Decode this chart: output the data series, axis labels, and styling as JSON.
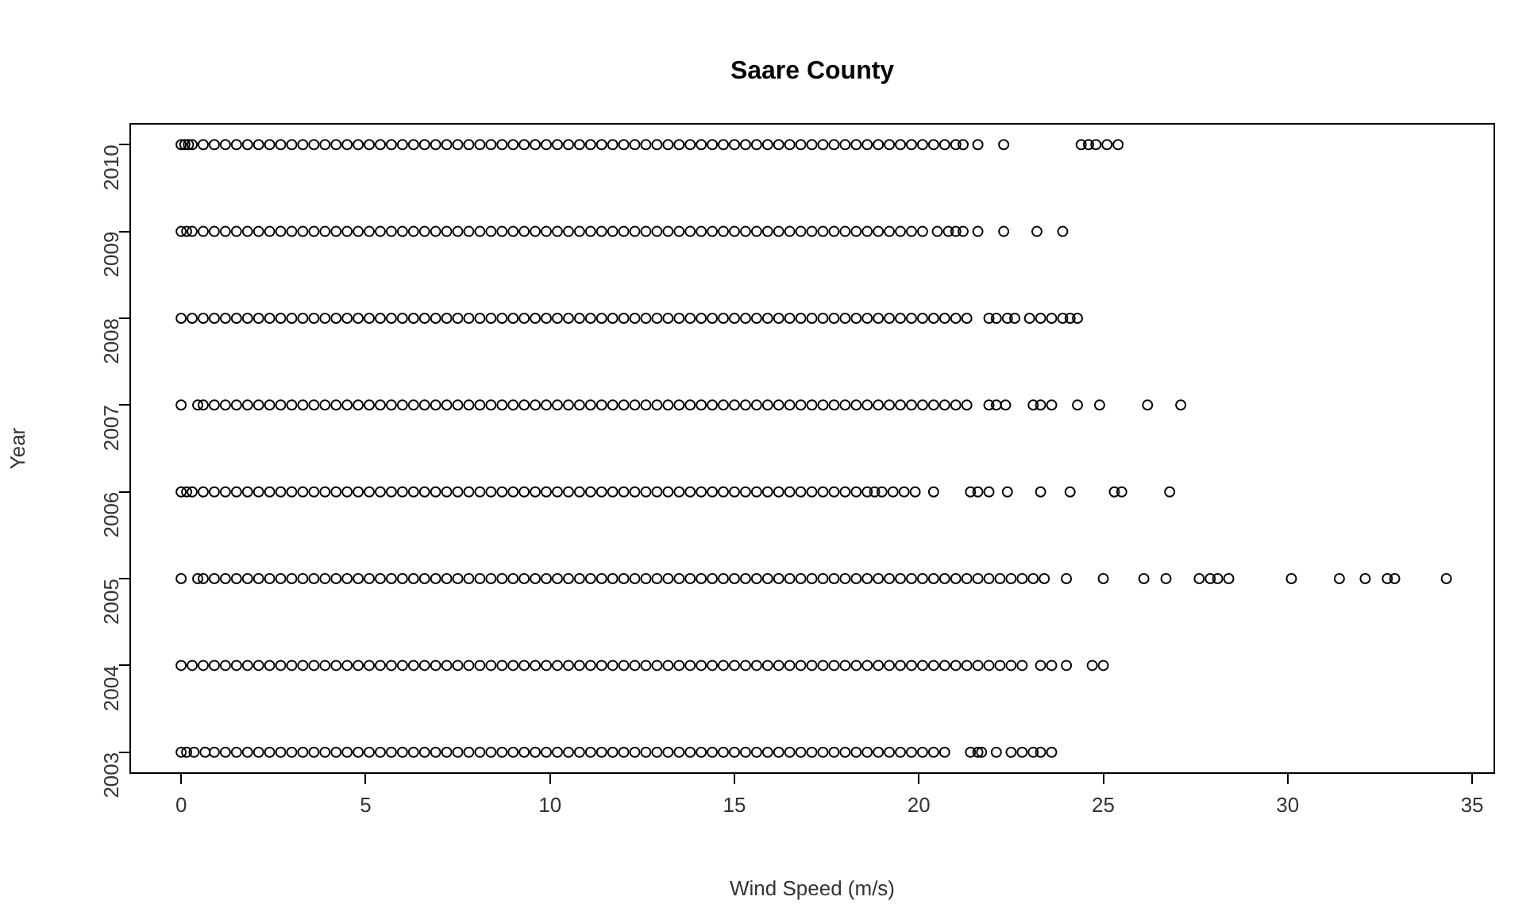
{
  "chart_data": {
    "type": "scatter",
    "title": "Saare County",
    "xlabel": "Wind Speed (m/s)",
    "ylabel": "Year",
    "xlim": [
      -1.38,
      35.6
    ],
    "xticks": [
      0,
      5,
      10,
      15,
      20,
      25,
      30,
      35
    ],
    "ylim": [
      2002.76,
      2010.24
    ],
    "yticks": [
      2003,
      2004,
      2005,
      2006,
      2007,
      2008,
      2009,
      2010
    ],
    "grid": false,
    "legend": false,
    "marker": "circle",
    "series": [
      {
        "color": "#000000",
        "x": [
          0,
          0.1,
          0.2,
          0.3,
          0.6,
          0.9,
          1.2,
          1.5,
          1.8,
          2.1,
          2.4,
          2.7,
          3,
          3.3,
          3.6,
          3.9,
          4.2,
          4.5,
          4.8,
          5.1,
          5.4,
          5.7,
          6,
          6.3,
          6.6,
          6.9,
          7.2,
          7.5,
          7.8,
          8.1,
          8.4,
          8.7,
          9,
          9.3,
          9.6,
          9.9,
          10.2,
          10.5,
          10.8,
          11.1,
          11.4,
          11.7,
          12,
          12.3,
          12.6,
          12.9,
          13.2,
          13.5,
          13.8,
          14.1,
          14.4,
          14.7,
          15,
          15.3,
          15.6,
          15.9,
          16.2,
          16.5,
          16.8,
          17.1,
          17.4,
          17.7,
          18,
          18.3,
          18.6,
          18.9,
          19.2,
          19.5,
          19.8,
          20.1,
          20.4,
          20.7,
          21,
          21.2,
          21.6,
          22.3,
          24.4,
          24.6,
          24.8,
          25.1,
          25.4
        ],
        "values": [
          2010,
          2010,
          2010,
          2010,
          2010,
          2010,
          2010,
          2010,
          2010,
          2010,
          2010,
          2010,
          2010,
          2010,
          2010,
          2010,
          2010,
          2010,
          2010,
          2010,
          2010,
          2010,
          2010,
          2010,
          2010,
          2010,
          2010,
          2010,
          2010,
          2010,
          2010,
          2010,
          2010,
          2010,
          2010,
          2010,
          2010,
          2010,
          2010,
          2010,
          2010,
          2010,
          2010,
          2010,
          2010,
          2010,
          2010,
          2010,
          2010,
          2010,
          2010,
          2010,
          2010,
          2010,
          2010,
          2010,
          2010,
          2010,
          2010,
          2010,
          2010,
          2010,
          2010,
          2010,
          2010,
          2010,
          2010,
          2010,
          2010,
          2010,
          2010,
          2010,
          2010,
          2010,
          2010,
          2010,
          2010,
          2010,
          2010,
          2010,
          2010
        ]
      },
      {
        "color": "#000000",
        "x": [
          0,
          0.15,
          0.3,
          0.6,
          0.9,
          1.2,
          1.5,
          1.8,
          2.1,
          2.4,
          2.7,
          3,
          3.3,
          3.6,
          3.9,
          4.2,
          4.5,
          4.8,
          5.1,
          5.4,
          5.7,
          6,
          6.3,
          6.6,
          6.9,
          7.2,
          7.5,
          7.8,
          8.1,
          8.4,
          8.7,
          9,
          9.3,
          9.6,
          9.9,
          10.2,
          10.5,
          10.8,
          11.1,
          11.4,
          11.7,
          12,
          12.3,
          12.6,
          12.9,
          13.2,
          13.5,
          13.8,
          14.1,
          14.4,
          14.7,
          15,
          15.3,
          15.6,
          15.9,
          16.2,
          16.5,
          16.8,
          17.1,
          17.4,
          17.7,
          18,
          18.3,
          18.6,
          18.9,
          19.2,
          19.5,
          19.8,
          20.1,
          20.5,
          20.8,
          21,
          21.2,
          21.6,
          22.3,
          23.2,
          23.9
        ],
        "values": [
          2009,
          2009,
          2009,
          2009,
          2009,
          2009,
          2009,
          2009,
          2009,
          2009,
          2009,
          2009,
          2009,
          2009,
          2009,
          2009,
          2009,
          2009,
          2009,
          2009,
          2009,
          2009,
          2009,
          2009,
          2009,
          2009,
          2009,
          2009,
          2009,
          2009,
          2009,
          2009,
          2009,
          2009,
          2009,
          2009,
          2009,
          2009,
          2009,
          2009,
          2009,
          2009,
          2009,
          2009,
          2009,
          2009,
          2009,
          2009,
          2009,
          2009,
          2009,
          2009,
          2009,
          2009,
          2009,
          2009,
          2009,
          2009,
          2009,
          2009,
          2009,
          2009,
          2009,
          2009,
          2009,
          2009,
          2009,
          2009,
          2009,
          2009,
          2009,
          2009,
          2009,
          2009,
          2009,
          2009,
          2009
        ]
      },
      {
        "color": "#000000",
        "x": [
          0,
          0.3,
          0.6,
          0.9,
          1.2,
          1.5,
          1.8,
          2.1,
          2.4,
          2.7,
          3,
          3.3,
          3.6,
          3.9,
          4.2,
          4.5,
          4.8,
          5.1,
          5.4,
          5.7,
          6,
          6.3,
          6.6,
          6.9,
          7.2,
          7.5,
          7.8,
          8.1,
          8.4,
          8.7,
          9,
          9.3,
          9.6,
          9.9,
          10.2,
          10.5,
          10.8,
          11.1,
          11.4,
          11.7,
          12,
          12.3,
          12.6,
          12.9,
          13.2,
          13.5,
          13.8,
          14.1,
          14.4,
          14.7,
          15,
          15.3,
          15.6,
          15.9,
          16.2,
          16.5,
          16.8,
          17.1,
          17.4,
          17.7,
          18,
          18.3,
          18.6,
          18.9,
          19.2,
          19.5,
          19.8,
          20.1,
          20.4,
          20.7,
          21,
          21.3,
          21.9,
          22.1,
          22.4,
          22.6,
          23,
          23.3,
          23.6,
          23.9,
          24.1,
          24.3
        ],
        "values": [
          2008,
          2008,
          2008,
          2008,
          2008,
          2008,
          2008,
          2008,
          2008,
          2008,
          2008,
          2008,
          2008,
          2008,
          2008,
          2008,
          2008,
          2008,
          2008,
          2008,
          2008,
          2008,
          2008,
          2008,
          2008,
          2008,
          2008,
          2008,
          2008,
          2008,
          2008,
          2008,
          2008,
          2008,
          2008,
          2008,
          2008,
          2008,
          2008,
          2008,
          2008,
          2008,
          2008,
          2008,
          2008,
          2008,
          2008,
          2008,
          2008,
          2008,
          2008,
          2008,
          2008,
          2008,
          2008,
          2008,
          2008,
          2008,
          2008,
          2008,
          2008,
          2008,
          2008,
          2008,
          2008,
          2008,
          2008,
          2008,
          2008,
          2008,
          2008,
          2008,
          2008,
          2008,
          2008,
          2008,
          2008,
          2008,
          2008,
          2008,
          2008,
          2008
        ]
      },
      {
        "color": "#000000",
        "x": [
          0,
          0.45,
          0.6,
          0.9,
          1.2,
          1.5,
          1.8,
          2.1,
          2.4,
          2.7,
          3,
          3.3,
          3.6,
          3.9,
          4.2,
          4.5,
          4.8,
          5.1,
          5.4,
          5.7,
          6,
          6.3,
          6.6,
          6.9,
          7.2,
          7.5,
          7.8,
          8.1,
          8.4,
          8.7,
          9,
          9.3,
          9.6,
          9.9,
          10.2,
          10.5,
          10.8,
          11.1,
          11.4,
          11.7,
          12,
          12.3,
          12.6,
          12.9,
          13.2,
          13.5,
          13.8,
          14.1,
          14.4,
          14.7,
          15,
          15.3,
          15.6,
          15.9,
          16.2,
          16.5,
          16.8,
          17.1,
          17.4,
          17.7,
          18,
          18.3,
          18.6,
          18.9,
          19.2,
          19.5,
          19.8,
          20.1,
          20.4,
          20.7,
          21,
          21.3,
          21.9,
          22.1,
          22.35,
          23.1,
          23.3,
          23.6,
          24.3,
          24.9,
          26.2,
          27.1
        ],
        "values": [
          2007,
          2007,
          2007,
          2007,
          2007,
          2007,
          2007,
          2007,
          2007,
          2007,
          2007,
          2007,
          2007,
          2007,
          2007,
          2007,
          2007,
          2007,
          2007,
          2007,
          2007,
          2007,
          2007,
          2007,
          2007,
          2007,
          2007,
          2007,
          2007,
          2007,
          2007,
          2007,
          2007,
          2007,
          2007,
          2007,
          2007,
          2007,
          2007,
          2007,
          2007,
          2007,
          2007,
          2007,
          2007,
          2007,
          2007,
          2007,
          2007,
          2007,
          2007,
          2007,
          2007,
          2007,
          2007,
          2007,
          2007,
          2007,
          2007,
          2007,
          2007,
          2007,
          2007,
          2007,
          2007,
          2007,
          2007,
          2007,
          2007,
          2007,
          2007,
          2007,
          2007,
          2007,
          2007,
          2007,
          2007,
          2007,
          2007,
          2007,
          2007,
          2007
        ]
      },
      {
        "color": "#000000",
        "x": [
          0,
          0.15,
          0.3,
          0.6,
          0.9,
          1.2,
          1.5,
          1.8,
          2.1,
          2.4,
          2.7,
          3,
          3.3,
          3.6,
          3.9,
          4.2,
          4.5,
          4.8,
          5.1,
          5.4,
          5.7,
          6,
          6.3,
          6.6,
          6.9,
          7.2,
          7.5,
          7.8,
          8.1,
          8.4,
          8.7,
          9,
          9.3,
          9.6,
          9.9,
          10.2,
          10.5,
          10.8,
          11.1,
          11.4,
          11.7,
          12,
          12.3,
          12.6,
          12.9,
          13.2,
          13.5,
          13.8,
          14.1,
          14.4,
          14.7,
          15,
          15.3,
          15.6,
          15.9,
          16.2,
          16.5,
          16.8,
          17.1,
          17.4,
          17.7,
          18,
          18.3,
          18.6,
          18.8,
          19,
          19.3,
          19.6,
          19.9,
          20.4,
          21.4,
          21.6,
          21.9,
          22.4,
          23.3,
          24.1,
          25.3,
          25.5,
          26.8
        ],
        "values": [
          2006,
          2006,
          2006,
          2006,
          2006,
          2006,
          2006,
          2006,
          2006,
          2006,
          2006,
          2006,
          2006,
          2006,
          2006,
          2006,
          2006,
          2006,
          2006,
          2006,
          2006,
          2006,
          2006,
          2006,
          2006,
          2006,
          2006,
          2006,
          2006,
          2006,
          2006,
          2006,
          2006,
          2006,
          2006,
          2006,
          2006,
          2006,
          2006,
          2006,
          2006,
          2006,
          2006,
          2006,
          2006,
          2006,
          2006,
          2006,
          2006,
          2006,
          2006,
          2006,
          2006,
          2006,
          2006,
          2006,
          2006,
          2006,
          2006,
          2006,
          2006,
          2006,
          2006,
          2006,
          2006,
          2006,
          2006,
          2006,
          2006,
          2006,
          2006,
          2006,
          2006,
          2006,
          2006,
          2006,
          2006,
          2006,
          2006
        ]
      },
      {
        "color": "#000000",
        "x": [
          0,
          0.45,
          0.6,
          0.9,
          1.2,
          1.5,
          1.8,
          2.1,
          2.4,
          2.7,
          3,
          3.3,
          3.6,
          3.9,
          4.2,
          4.5,
          4.8,
          5.1,
          5.4,
          5.7,
          6,
          6.3,
          6.6,
          6.9,
          7.2,
          7.5,
          7.8,
          8.1,
          8.4,
          8.7,
          9,
          9.3,
          9.6,
          9.9,
          10.2,
          10.5,
          10.8,
          11.1,
          11.4,
          11.7,
          12,
          12.3,
          12.6,
          12.9,
          13.2,
          13.5,
          13.8,
          14.1,
          14.4,
          14.7,
          15,
          15.3,
          15.6,
          15.9,
          16.2,
          16.5,
          16.8,
          17.1,
          17.4,
          17.7,
          18,
          18.3,
          18.6,
          18.9,
          19.2,
          19.5,
          19.8,
          20.1,
          20.4,
          20.7,
          21,
          21.3,
          21.6,
          21.9,
          22.2,
          22.5,
          22.8,
          23.1,
          23.4,
          24,
          25,
          26.1,
          26.7,
          27.6,
          27.9,
          28.1,
          28.4,
          30.1,
          31.4,
          32.1,
          32.7,
          32.9,
          34.3
        ],
        "values": [
          2005,
          2005,
          2005,
          2005,
          2005,
          2005,
          2005,
          2005,
          2005,
          2005,
          2005,
          2005,
          2005,
          2005,
          2005,
          2005,
          2005,
          2005,
          2005,
          2005,
          2005,
          2005,
          2005,
          2005,
          2005,
          2005,
          2005,
          2005,
          2005,
          2005,
          2005,
          2005,
          2005,
          2005,
          2005,
          2005,
          2005,
          2005,
          2005,
          2005,
          2005,
          2005,
          2005,
          2005,
          2005,
          2005,
          2005,
          2005,
          2005,
          2005,
          2005,
          2005,
          2005,
          2005,
          2005,
          2005,
          2005,
          2005,
          2005,
          2005,
          2005,
          2005,
          2005,
          2005,
          2005,
          2005,
          2005,
          2005,
          2005,
          2005,
          2005,
          2005,
          2005,
          2005,
          2005,
          2005,
          2005,
          2005,
          2005,
          2005,
          2005,
          2005,
          2005,
          2005,
          2005,
          2005,
          2005,
          2005,
          2005,
          2005,
          2005,
          2005,
          2005
        ]
      },
      {
        "color": "#000000",
        "x": [
          0,
          0.3,
          0.6,
          0.9,
          1.2,
          1.5,
          1.8,
          2.1,
          2.4,
          2.7,
          3,
          3.3,
          3.6,
          3.9,
          4.2,
          4.5,
          4.8,
          5.1,
          5.4,
          5.7,
          6,
          6.3,
          6.6,
          6.9,
          7.2,
          7.5,
          7.8,
          8.1,
          8.4,
          8.7,
          9,
          9.3,
          9.6,
          9.9,
          10.2,
          10.5,
          10.8,
          11.1,
          11.4,
          11.7,
          12,
          12.3,
          12.6,
          12.9,
          13.2,
          13.5,
          13.8,
          14.1,
          14.4,
          14.7,
          15,
          15.3,
          15.6,
          15.9,
          16.2,
          16.5,
          16.8,
          17.1,
          17.4,
          17.7,
          18,
          18.3,
          18.6,
          18.9,
          19.2,
          19.5,
          19.8,
          20.1,
          20.4,
          20.7,
          21,
          21.3,
          21.6,
          21.9,
          22.2,
          22.5,
          22.8,
          23.3,
          23.6,
          24,
          24.7,
          25
        ],
        "values": [
          2004,
          2004,
          2004,
          2004,
          2004,
          2004,
          2004,
          2004,
          2004,
          2004,
          2004,
          2004,
          2004,
          2004,
          2004,
          2004,
          2004,
          2004,
          2004,
          2004,
          2004,
          2004,
          2004,
          2004,
          2004,
          2004,
          2004,
          2004,
          2004,
          2004,
          2004,
          2004,
          2004,
          2004,
          2004,
          2004,
          2004,
          2004,
          2004,
          2004,
          2004,
          2004,
          2004,
          2004,
          2004,
          2004,
          2004,
          2004,
          2004,
          2004,
          2004,
          2004,
          2004,
          2004,
          2004,
          2004,
          2004,
          2004,
          2004,
          2004,
          2004,
          2004,
          2004,
          2004,
          2004,
          2004,
          2004,
          2004,
          2004,
          2004,
          2004,
          2004,
          2004,
          2004,
          2004,
          2004,
          2004,
          2004,
          2004,
          2004,
          2004,
          2004
        ]
      },
      {
        "color": "#000000",
        "x": [
          0,
          0.15,
          0.35,
          0.65,
          0.9,
          1.2,
          1.5,
          1.8,
          2.1,
          2.4,
          2.7,
          3,
          3.3,
          3.6,
          3.9,
          4.2,
          4.5,
          4.8,
          5.1,
          5.4,
          5.7,
          6,
          6.3,
          6.6,
          6.9,
          7.2,
          7.5,
          7.8,
          8.1,
          8.4,
          8.7,
          9,
          9.3,
          9.6,
          9.9,
          10.2,
          10.5,
          10.8,
          11.1,
          11.4,
          11.7,
          12,
          12.3,
          12.6,
          12.9,
          13.2,
          13.5,
          13.8,
          14.1,
          14.4,
          14.7,
          15,
          15.3,
          15.6,
          15.9,
          16.2,
          16.5,
          16.8,
          17.1,
          17.4,
          17.7,
          18,
          18.3,
          18.6,
          18.9,
          19.2,
          19.5,
          19.8,
          20.1,
          20.4,
          20.7,
          21.4,
          21.6,
          21.7,
          22.1,
          22.5,
          22.8,
          23.1,
          23.3,
          23.6
        ],
        "values": [
          2003,
          2003,
          2003,
          2003,
          2003,
          2003,
          2003,
          2003,
          2003,
          2003,
          2003,
          2003,
          2003,
          2003,
          2003,
          2003,
          2003,
          2003,
          2003,
          2003,
          2003,
          2003,
          2003,
          2003,
          2003,
          2003,
          2003,
          2003,
          2003,
          2003,
          2003,
          2003,
          2003,
          2003,
          2003,
          2003,
          2003,
          2003,
          2003,
          2003,
          2003,
          2003,
          2003,
          2003,
          2003,
          2003,
          2003,
          2003,
          2003,
          2003,
          2003,
          2003,
          2003,
          2003,
          2003,
          2003,
          2003,
          2003,
          2003,
          2003,
          2003,
          2003,
          2003,
          2003,
          2003,
          2003,
          2003,
          2003,
          2003,
          2003,
          2003,
          2003,
          2003,
          2003,
          2003,
          2003,
          2003,
          2003,
          2003,
          2003
        ]
      }
    ]
  }
}
